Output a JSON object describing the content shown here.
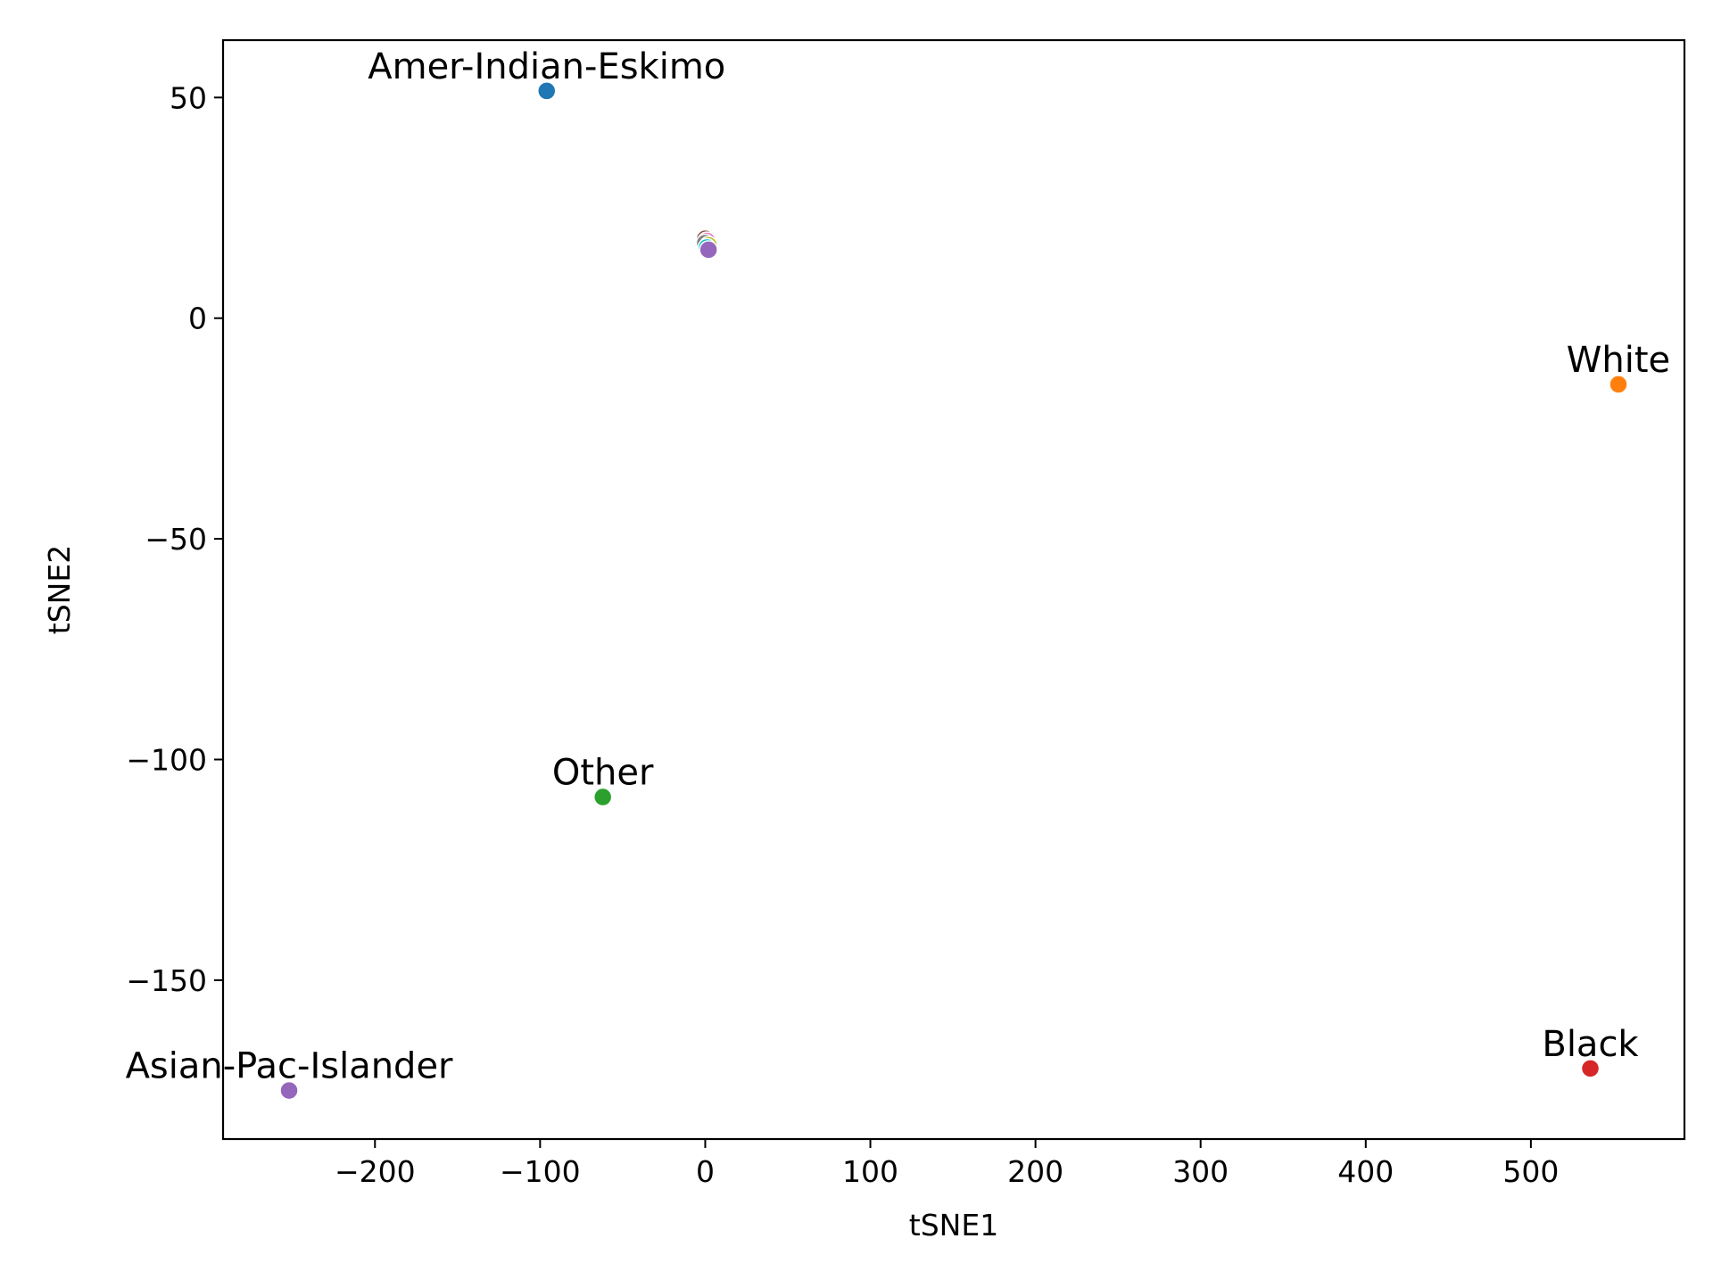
{
  "chart_data": {
    "type": "scatter",
    "xlabel": "tSNE1",
    "ylabel": "tSNE2",
    "xlim": [
      -292,
      593
    ],
    "ylim": [
      -186,
      63
    ],
    "xticks": [
      -200,
      -100,
      0,
      100,
      200,
      300,
      400,
      500
    ],
    "yticks": [
      50,
      0,
      -50,
      -100,
      -150
    ],
    "xtick_labels": [
      "−200",
      "−100",
      "0",
      "100",
      "200",
      "300",
      "400",
      "500"
    ],
    "ytick_labels": [
      "50",
      "0",
      "−50",
      "−100",
      "−150"
    ],
    "grid": false,
    "legend": "none",
    "points": [
      {
        "label": "Amer-Indian-Eskimo",
        "x": -96,
        "y": 51.5,
        "color": "#1f77b4"
      },
      {
        "label": "White",
        "x": 553,
        "y": -15,
        "color": "#ff7f0e"
      },
      {
        "label": "Other",
        "x": -62,
        "y": -108.5,
        "color": "#2ca02c"
      },
      {
        "label": "Black",
        "x": 536,
        "y": -170,
        "color": "#d62728"
      },
      {
        "label": "Asian-Pac-Islander",
        "x": -252,
        "y": -175,
        "color": "#9467bd"
      },
      {
        "label": "",
        "x": 0,
        "y": 18,
        "color": "#8c564b"
      },
      {
        "label": "",
        "x": 1,
        "y": 17.5,
        "color": "#e377c2"
      },
      {
        "label": "",
        "x": 0,
        "y": 17,
        "color": "#7f7f7f"
      },
      {
        "label": "",
        "x": 2,
        "y": 16.5,
        "color": "#bcbd22"
      },
      {
        "label": "",
        "x": 1,
        "y": 16,
        "color": "#17becf"
      },
      {
        "label": "",
        "x": 2,
        "y": 15.5,
        "color": "#9467bd"
      }
    ]
  }
}
